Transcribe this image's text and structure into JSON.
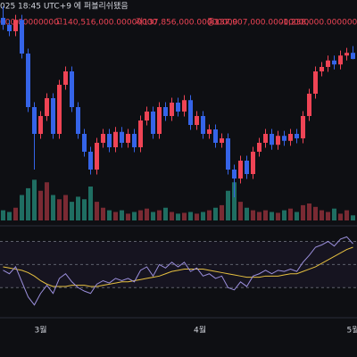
{
  "chart_data": {
    "type": "candlestick",
    "header": {
      "line1": "025 18:45 UTC+9 에 퍼블리쉬됐음",
      "items": [
        "000.00000000",
        "고140,516,000.00000000",
        "저137,856,000.00000000",
        "종137,907,000.00000000",
        "-1,238,000.00000000 (-0.8"
      ]
    },
    "up_color": "#ef4455",
    "down_color": "#3564e8",
    "volume_up_color": "#7a2a33",
    "volume_down_color": "#1f6e62",
    "rsi_color": "#9b8fdc",
    "rsi_ma_color": "#e6c040",
    "ylim": [
      107500000,
      149800000
    ],
    "xticks": [
      {
        "value": 6,
        "label": "3월"
      },
      {
        "value": 31.5,
        "label": "4월"
      },
      {
        "value": 56,
        "label": "5월"
      }
    ],
    "open": [
      146200000,
      144800000,
      143500000,
      145800000,
      139000000,
      128200000,
      122800000,
      126400000,
      130000000,
      122800000,
      132700000,
      135400000,
      128200000,
      122800000,
      119200000,
      115600000,
      121000000,
      122800000,
      120100000,
      123200000,
      121000000,
      122800000,
      120100000,
      125500000,
      127300000,
      122800000,
      128200000,
      126400000,
      129100000,
      127300000,
      129600000,
      124600000,
      126400000,
      122800000,
      123700000,
      121000000,
      121900000,
      115600000,
      113800000,
      117400000,
      114700000,
      119200000,
      121000000,
      122800000,
      120600000,
      122400000,
      121400000,
      122800000,
      121900000,
      126400000,
      130900000,
      135400000,
      136300000,
      137600000,
      136800000,
      138600000,
      139145000
    ],
    "high": [
      148500000,
      145800000,
      146800000,
      146800000,
      140000000,
      129200000,
      127400000,
      131000000,
      131000000,
      133700000,
      136400000,
      136400000,
      129200000,
      123800000,
      120200000,
      122000000,
      123800000,
      123800000,
      124200000,
      124200000,
      123800000,
      123800000,
      126500000,
      128300000,
      128300000,
      129200000,
      129200000,
      130100000,
      130100000,
      130600000,
      130600000,
      127400000,
      127400000,
      124700000,
      124700000,
      122900000,
      122900000,
      116600000,
      118400000,
      118400000,
      120200000,
      122000000,
      123800000,
      123800000,
      123400000,
      123400000,
      123800000,
      123800000,
      127400000,
      131900000,
      136400000,
      137300000,
      138600000,
      138600000,
      139600000,
      140145000,
      140516000
    ],
    "low": [
      143800000,
      142500000,
      142500000,
      138000000,
      127200000,
      115600000,
      121800000,
      125400000,
      121800000,
      121800000,
      131700000,
      127200000,
      121800000,
      118200000,
      114600000,
      114600000,
      120000000,
      119100000,
      119100000,
      120000000,
      120000000,
      119100000,
      119100000,
      124500000,
      121800000,
      121800000,
      125400000,
      125400000,
      126300000,
      126300000,
      123600000,
      123600000,
      121800000,
      121800000,
      120000000,
      120000000,
      114600000,
      110000000,
      112800000,
      113700000,
      113700000,
      118200000,
      120000000,
      119600000,
      119600000,
      120400000,
      120400000,
      120900000,
      120900000,
      125400000,
      129900000,
      134400000,
      135300000,
      135800000,
      135800000,
      137600000,
      137856000
    ],
    "close": [
      144800000,
      143500000,
      145800000,
      139000000,
      128200000,
      122800000,
      126400000,
      130000000,
      122800000,
      132700000,
      135400000,
      128200000,
      122800000,
      119200000,
      115600000,
      121000000,
      122800000,
      120100000,
      123200000,
      121000000,
      122800000,
      120100000,
      125500000,
      127300000,
      122800000,
      128200000,
      126400000,
      129100000,
      127300000,
      129600000,
      124600000,
      126400000,
      122800000,
      123700000,
      121000000,
      121900000,
      115600000,
      113800000,
      117400000,
      114700000,
      119200000,
      121000000,
      122800000,
      120600000,
      122400000,
      121400000,
      122800000,
      121900000,
      126400000,
      130900000,
      135400000,
      136300000,
      137600000,
      136800000,
      138600000,
      139145000,
      137907000
    ],
    "volume": [
      12,
      10,
      15,
      30,
      38,
      48,
      35,
      45,
      30,
      25,
      30,
      22,
      28,
      25,
      40,
      22,
      15,
      12,
      10,
      12,
      8,
      10,
      12,
      14,
      10,
      12,
      15,
      10,
      8,
      9,
      10,
      8,
      10,
      12,
      15,
      18,
      35,
      45,
      22,
      15,
      12,
      10,
      12,
      10,
      9,
      12,
      14,
      10,
      18,
      20,
      16,
      12,
      10,
      14,
      8,
      12,
      6
    ],
    "volume_ylim": [
      0,
      260
    ],
    "rsi": [
      45,
      42,
      48,
      35,
      22,
      15,
      25,
      32,
      25,
      38,
      42,
      35,
      30,
      27,
      25,
      33,
      36,
      34,
      38,
      36,
      38,
      35,
      45,
      48,
      40,
      50,
      47,
      52,
      48,
      52,
      44,
      47,
      40,
      42,
      38,
      40,
      30,
      28,
      35,
      31,
      40,
      42,
      45,
      42,
      45,
      44,
      46,
      44,
      52,
      58,
      65,
      67,
      70,
      66,
      72,
      74,
      68
    ],
    "rsi_ma": [
      48,
      47,
      46,
      45,
      43,
      40,
      36,
      33,
      31,
      31,
      31,
      32,
      32,
      32,
      31,
      31,
      32,
      33,
      34,
      35,
      35,
      36,
      37,
      38,
      39,
      40,
      42,
      44,
      45,
      46,
      46,
      46,
      46,
      45,
      44,
      43,
      42,
      41,
      40,
      39,
      39,
      39,
      40,
      40,
      40,
      41,
      42,
      42,
      44,
      46,
      48,
      51,
      54,
      57,
      60,
      63,
      65
    ],
    "rsi_ylim": [
      7,
      82
    ],
    "rsi_levels": [
      70,
      50,
      30
    ]
  }
}
